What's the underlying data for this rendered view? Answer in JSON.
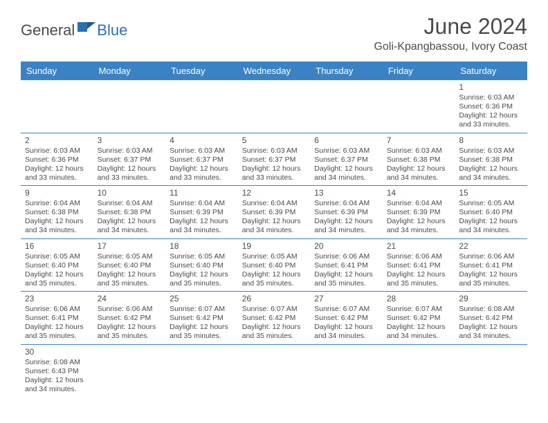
{
  "logo": {
    "part1": "General",
    "part2": "Blue"
  },
  "title": "June 2024",
  "location": "Goli-Kpangbassou, Ivory Coast",
  "colors": {
    "header_bg": "#3b82c4",
    "header_text": "#ffffff",
    "border": "#3b82c4",
    "body_text": "#4a4a4a",
    "logo_blue": "#2b6fb3"
  },
  "weekdays": [
    "Sunday",
    "Monday",
    "Tuesday",
    "Wednesday",
    "Thursday",
    "Friday",
    "Saturday"
  ],
  "rows": [
    [
      null,
      null,
      null,
      null,
      null,
      null,
      {
        "d": "1",
        "sr": "6:03 AM",
        "ss": "6:36 PM",
        "dl": "12 hours and 33 minutes."
      }
    ],
    [
      {
        "d": "2",
        "sr": "6:03 AM",
        "ss": "6:36 PM",
        "dl": "12 hours and 33 minutes."
      },
      {
        "d": "3",
        "sr": "6:03 AM",
        "ss": "6:37 PM",
        "dl": "12 hours and 33 minutes."
      },
      {
        "d": "4",
        "sr": "6:03 AM",
        "ss": "6:37 PM",
        "dl": "12 hours and 33 minutes."
      },
      {
        "d": "5",
        "sr": "6:03 AM",
        "ss": "6:37 PM",
        "dl": "12 hours and 33 minutes."
      },
      {
        "d": "6",
        "sr": "6:03 AM",
        "ss": "6:37 PM",
        "dl": "12 hours and 34 minutes."
      },
      {
        "d": "7",
        "sr": "6:03 AM",
        "ss": "6:38 PM",
        "dl": "12 hours and 34 minutes."
      },
      {
        "d": "8",
        "sr": "6:03 AM",
        "ss": "6:38 PM",
        "dl": "12 hours and 34 minutes."
      }
    ],
    [
      {
        "d": "9",
        "sr": "6:04 AM",
        "ss": "6:38 PM",
        "dl": "12 hours and 34 minutes."
      },
      {
        "d": "10",
        "sr": "6:04 AM",
        "ss": "6:38 PM",
        "dl": "12 hours and 34 minutes."
      },
      {
        "d": "11",
        "sr": "6:04 AM",
        "ss": "6:39 PM",
        "dl": "12 hours and 34 minutes."
      },
      {
        "d": "12",
        "sr": "6:04 AM",
        "ss": "6:39 PM",
        "dl": "12 hours and 34 minutes."
      },
      {
        "d": "13",
        "sr": "6:04 AM",
        "ss": "6:39 PM",
        "dl": "12 hours and 34 minutes."
      },
      {
        "d": "14",
        "sr": "6:04 AM",
        "ss": "6:39 PM",
        "dl": "12 hours and 34 minutes."
      },
      {
        "d": "15",
        "sr": "6:05 AM",
        "ss": "6:40 PM",
        "dl": "12 hours and 34 minutes."
      }
    ],
    [
      {
        "d": "16",
        "sr": "6:05 AM",
        "ss": "6:40 PM",
        "dl": "12 hours and 35 minutes."
      },
      {
        "d": "17",
        "sr": "6:05 AM",
        "ss": "6:40 PM",
        "dl": "12 hours and 35 minutes."
      },
      {
        "d": "18",
        "sr": "6:05 AM",
        "ss": "6:40 PM",
        "dl": "12 hours and 35 minutes."
      },
      {
        "d": "19",
        "sr": "6:05 AM",
        "ss": "6:40 PM",
        "dl": "12 hours and 35 minutes."
      },
      {
        "d": "20",
        "sr": "6:06 AM",
        "ss": "6:41 PM",
        "dl": "12 hours and 35 minutes."
      },
      {
        "d": "21",
        "sr": "6:06 AM",
        "ss": "6:41 PM",
        "dl": "12 hours and 35 minutes."
      },
      {
        "d": "22",
        "sr": "6:06 AM",
        "ss": "6:41 PM",
        "dl": "12 hours and 35 minutes."
      }
    ],
    [
      {
        "d": "23",
        "sr": "6:06 AM",
        "ss": "6:41 PM",
        "dl": "12 hours and 35 minutes."
      },
      {
        "d": "24",
        "sr": "6:06 AM",
        "ss": "6:42 PM",
        "dl": "12 hours and 35 minutes."
      },
      {
        "d": "25",
        "sr": "6:07 AM",
        "ss": "6:42 PM",
        "dl": "12 hours and 35 minutes."
      },
      {
        "d": "26",
        "sr": "6:07 AM",
        "ss": "6:42 PM",
        "dl": "12 hours and 35 minutes."
      },
      {
        "d": "27",
        "sr": "6:07 AM",
        "ss": "6:42 PM",
        "dl": "12 hours and 34 minutes."
      },
      {
        "d": "28",
        "sr": "6:07 AM",
        "ss": "6:42 PM",
        "dl": "12 hours and 34 minutes."
      },
      {
        "d": "29",
        "sr": "6:08 AM",
        "ss": "6:42 PM",
        "dl": "12 hours and 34 minutes."
      }
    ],
    [
      {
        "d": "30",
        "sr": "6:08 AM",
        "ss": "6:43 PM",
        "dl": "12 hours and 34 minutes."
      },
      null,
      null,
      null,
      null,
      null,
      null
    ]
  ],
  "labels": {
    "sunrise": "Sunrise: ",
    "sunset": "Sunset: ",
    "daylight": "Daylight: "
  }
}
